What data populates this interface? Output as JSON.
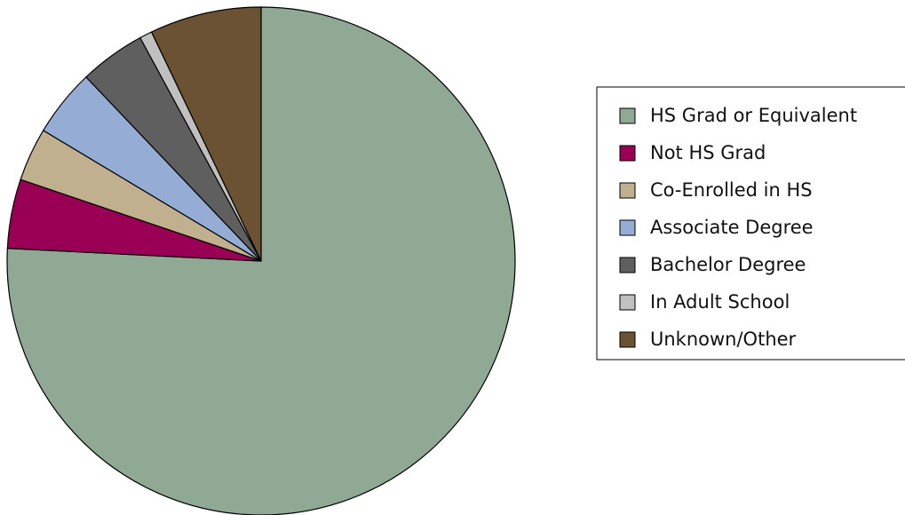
{
  "chart_data": {
    "type": "pie",
    "legend": "right",
    "categories": [
      "HS Grad or Equivalent",
      "Not HS Grad",
      "Co-Enrolled in HS",
      "Associate Degree",
      "Bachelor Degree",
      "In Adult School",
      "Unknown/Other"
    ],
    "values": [
      75.8,
      4.4,
      3.4,
      4.3,
      4.2,
      0.8,
      7.1
    ],
    "colors": [
      "#8fa994",
      "#990055",
      "#c0b08e",
      "#95add4",
      "#5f5f5f",
      "#c0c0c0",
      "#6b5232"
    ]
  }
}
